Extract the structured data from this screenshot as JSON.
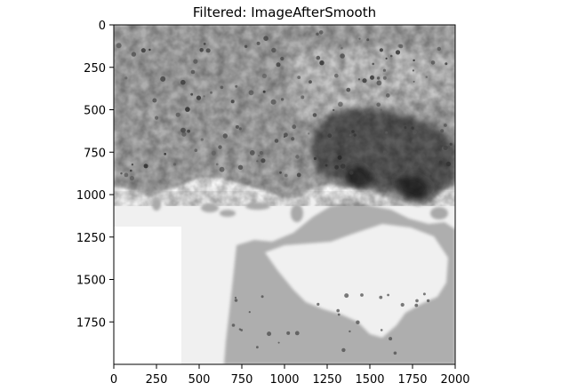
{
  "title": "Filtered: ImageAfterSmooth",
  "x_axis": {
    "range": [
      0,
      2000
    ],
    "ticks": [
      {
        "value": 0,
        "label": "0"
      },
      {
        "value": 250,
        "label": "250"
      },
      {
        "value": 500,
        "label": "500"
      },
      {
        "value": 750,
        "label": "750"
      },
      {
        "value": 1000,
        "label": "1000"
      },
      {
        "value": 1250,
        "label": "1250"
      },
      {
        "value": 1500,
        "label": "1500"
      },
      {
        "value": 1750,
        "label": "1750"
      },
      {
        "value": 2000,
        "label": "2000"
      }
    ]
  },
  "y_axis": {
    "range": [
      0,
      2000
    ],
    "inverted": true,
    "ticks": [
      {
        "value": 0,
        "label": "0"
      },
      {
        "value": 250,
        "label": "250"
      },
      {
        "value": 500,
        "label": "500"
      },
      {
        "value": 750,
        "label": "750"
      },
      {
        "value": 1000,
        "label": "1000"
      },
      {
        "value": 1250,
        "label": "1250"
      },
      {
        "value": 1500,
        "label": "1500"
      },
      {
        "value": 1750,
        "label": "1750"
      }
    ]
  },
  "image": {
    "colormap": "grayscale",
    "tissue_color": "#aeaeae",
    "dark_region_color": "#5c5c5c",
    "background_color": "#f0f0f0",
    "lower_left_blank_color": "#ffffff"
  }
}
